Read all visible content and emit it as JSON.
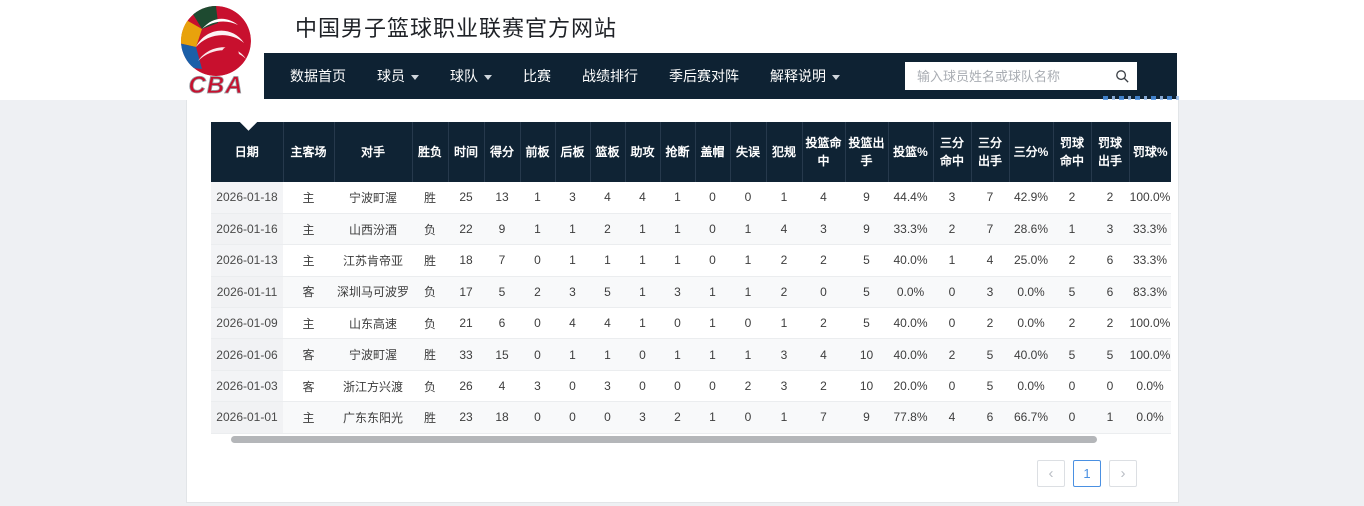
{
  "header": {
    "title": "中国男子篮球职业联赛官方网站",
    "logo_text": "CBA",
    "nav_items": [
      {
        "label": "数据首页",
        "dropdown": false
      },
      {
        "label": "球员",
        "dropdown": true
      },
      {
        "label": "球队",
        "dropdown": true
      },
      {
        "label": "比赛",
        "dropdown": false
      },
      {
        "label": "战绩排行",
        "dropdown": false
      },
      {
        "label": "季后赛对阵",
        "dropdown": false
      },
      {
        "label": "解释说明",
        "dropdown": true
      }
    ],
    "search": {
      "placeholder": "输入球员姓名或球队名称",
      "icon": "search-icon"
    }
  },
  "table": {
    "columns": [
      "日期",
      "主客场",
      "对手",
      "胜负",
      "时间",
      "得分",
      "前板",
      "后板",
      "篮板",
      "助攻",
      "抢断",
      "盖帽",
      "失误",
      "犯规",
      "投篮命中",
      "投篮出手",
      "投篮%",
      "三分命中",
      "三分出手",
      "三分%",
      "罚球命中",
      "罚球出手",
      "罚球%"
    ],
    "rows": [
      [
        "2026-01-18",
        "主",
        "宁波町渥",
        "胜",
        "25",
        "13",
        "1",
        "3",
        "4",
        "4",
        "1",
        "0",
        "0",
        "1",
        "4",
        "9",
        "44.4%",
        "3",
        "7",
        "42.9%",
        "2",
        "2",
        "100.0%"
      ],
      [
        "2026-01-16",
        "主",
        "山西汾酒",
        "负",
        "22",
        "9",
        "1",
        "1",
        "2",
        "1",
        "1",
        "0",
        "1",
        "4",
        "3",
        "9",
        "33.3%",
        "2",
        "7",
        "28.6%",
        "1",
        "3",
        "33.3%"
      ],
      [
        "2026-01-13",
        "主",
        "江苏肯帝亚",
        "胜",
        "18",
        "7",
        "0",
        "1",
        "1",
        "1",
        "1",
        "0",
        "1",
        "2",
        "2",
        "5",
        "40.0%",
        "1",
        "4",
        "25.0%",
        "2",
        "6",
        "33.3%"
      ],
      [
        "2026-01-11",
        "客",
        "深圳马可波罗",
        "负",
        "17",
        "5",
        "2",
        "3",
        "5",
        "1",
        "3",
        "1",
        "1",
        "2",
        "0",
        "5",
        "0.0%",
        "0",
        "3",
        "0.0%",
        "5",
        "6",
        "83.3%"
      ],
      [
        "2026-01-09",
        "主",
        "山东高速",
        "负",
        "21",
        "6",
        "0",
        "4",
        "4",
        "1",
        "0",
        "1",
        "0",
        "1",
        "2",
        "5",
        "40.0%",
        "0",
        "2",
        "0.0%",
        "2",
        "2",
        "100.0%"
      ],
      [
        "2026-01-06",
        "客",
        "宁波町渥",
        "胜",
        "33",
        "15",
        "0",
        "1",
        "1",
        "0",
        "1",
        "1",
        "1",
        "3",
        "4",
        "10",
        "40.0%",
        "2",
        "5",
        "40.0%",
        "5",
        "5",
        "100.0%"
      ],
      [
        "2026-01-03",
        "客",
        "浙江方兴渡",
        "负",
        "26",
        "4",
        "3",
        "0",
        "3",
        "0",
        "0",
        "0",
        "2",
        "3",
        "2",
        "10",
        "20.0%",
        "0",
        "5",
        "0.0%",
        "0",
        "0",
        "0.0%"
      ],
      [
        "2026-01-01",
        "主",
        "广东东阳光",
        "胜",
        "23",
        "18",
        "0",
        "0",
        "0",
        "3",
        "2",
        "1",
        "0",
        "1",
        "7",
        "9",
        "77.8%",
        "4",
        "6",
        "66.7%",
        "0",
        "1",
        "0.0%"
      ]
    ]
  },
  "pagination": {
    "prev": "‹",
    "pages": [
      "1"
    ],
    "current": "1",
    "next": "›"
  },
  "colors": {
    "navbar_bg": "#0e2233",
    "table_header_bg": "#0f2334",
    "accent_blue": "#4a90e2",
    "page_bg": "#eef0f3",
    "logo_red": "#c8102e",
    "logo_yellow": "#e8a20c",
    "logo_blue": "#1b5fa8",
    "logo_green": "#1e4a30"
  }
}
